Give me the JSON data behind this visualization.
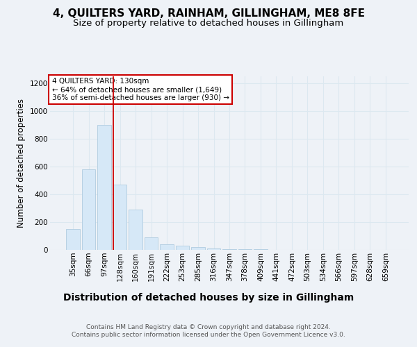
{
  "title": "4, QUILTERS YARD, RAINHAM, GILLINGHAM, ME8 8FE",
  "subtitle": "Size of property relative to detached houses in Gillingham",
  "xlabel": "Distribution of detached houses by size in Gillingham",
  "ylabel": "Number of detached properties",
  "categories": [
    "35sqm",
    "66sqm",
    "97sqm",
    "128sqm",
    "160sqm",
    "191sqm",
    "222sqm",
    "253sqm",
    "285sqm",
    "316sqm",
    "347sqm",
    "378sqm",
    "409sqm",
    "441sqm",
    "472sqm",
    "503sqm",
    "534sqm",
    "566sqm",
    "597sqm",
    "628sqm",
    "659sqm"
  ],
  "values": [
    150,
    580,
    900,
    470,
    290,
    90,
    40,
    30,
    20,
    10,
    5,
    5,
    3,
    0,
    0,
    0,
    0,
    0,
    0,
    0,
    0
  ],
  "bar_color": "#d6e8f7",
  "bar_edge_color": "#b0cce0",
  "grid_color": "#dce8f0",
  "vline_color": "#cc0000",
  "annotation_text": "4 QUILTERS YARD: 130sqm\n← 64% of detached houses are smaller (1,649)\n36% of semi-detached houses are larger (930) →",
  "annotation_box_color": "#ffffff",
  "annotation_box_edge": "#cc0000",
  "ylim": [
    0,
    1250
  ],
  "yticks": [
    0,
    200,
    400,
    600,
    800,
    1000,
    1200
  ],
  "footer": "Contains HM Land Registry data © Crown copyright and database right 2024.\nContains public sector information licensed under the Open Government Licence v3.0.",
  "background_color": "#eef2f7",
  "plot_background": "#eef2f7",
  "title_fontsize": 11,
  "subtitle_fontsize": 9.5,
  "ylabel_fontsize": 8.5,
  "xlabel_fontsize": 10,
  "tick_fontsize": 7.5,
  "annotation_fontsize": 7.5,
  "footer_fontsize": 6.5
}
